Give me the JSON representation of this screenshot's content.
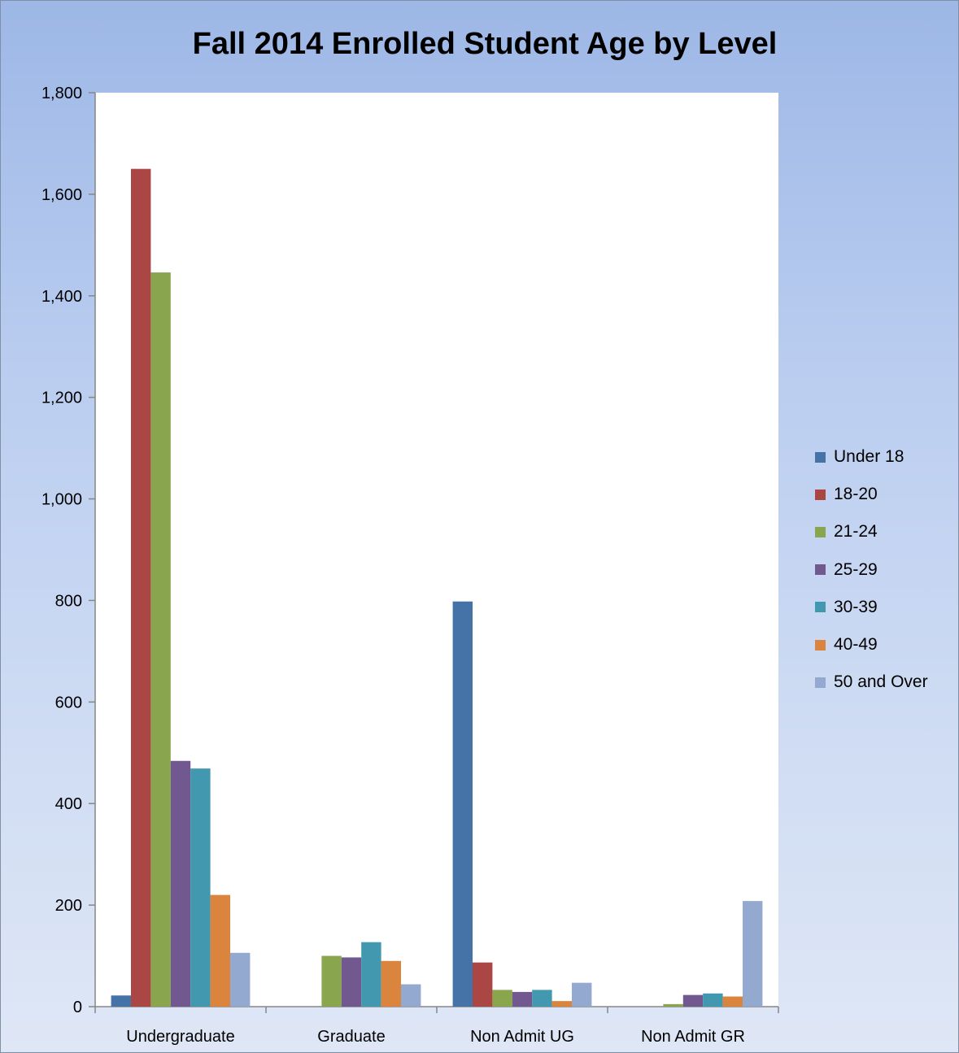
{
  "chart_data": {
    "type": "bar",
    "title": "Fall 2014 Enrolled Student Age by Level",
    "xlabel": "",
    "ylabel": "",
    "ylim": [
      0,
      1800
    ],
    "yticks": [
      0,
      200,
      400,
      600,
      800,
      1000,
      1200,
      1400,
      1600,
      1800
    ],
    "ytick_labels": [
      "0",
      "200",
      "400",
      "600",
      "800",
      "1,000",
      "1,200",
      "1,400",
      "1,600",
      "1,800"
    ],
    "categories": [
      "Undergraduate",
      "Graduate",
      "Non Admit UG",
      "Non Admit GR"
    ],
    "grid": false,
    "legend_position": "right",
    "series": [
      {
        "name": "Under 18",
        "color": "#4572a7",
        "values": [
          22,
          0,
          798,
          0
        ]
      },
      {
        "name": "18-20",
        "color": "#aa4643",
        "values": [
          1650,
          0,
          87,
          0
        ]
      },
      {
        "name": "21-24",
        "color": "#89a54e",
        "values": [
          1446,
          100,
          33,
          5
        ]
      },
      {
        "name": "25-29",
        "color": "#71588f",
        "values": [
          484,
          97,
          29,
          23
        ]
      },
      {
        "name": "30-39",
        "color": "#4198af",
        "values": [
          469,
          127,
          33,
          26
        ]
      },
      {
        "name": "40-49",
        "color": "#db843d",
        "values": [
          220,
          90,
          11,
          20
        ]
      },
      {
        "name": "50 and Over",
        "color": "#93a9cf",
        "values": [
          106,
          44,
          47,
          208
        ]
      }
    ]
  }
}
